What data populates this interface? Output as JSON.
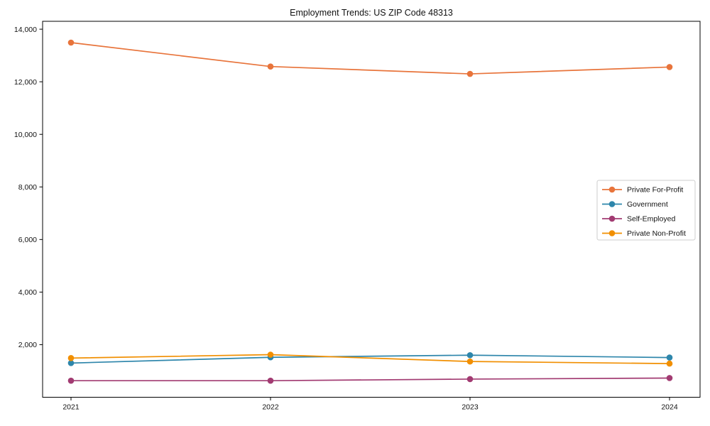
{
  "chart_data": {
    "type": "line",
    "title": "Employment Trends: US ZIP Code 48313",
    "xlabel": "",
    "ylabel": "",
    "x": [
      "2021",
      "2022",
      "2023",
      "2024"
    ],
    "series": [
      {
        "name": "Private For-Profit",
        "color": "#E8743B",
        "values": [
          13490,
          12580,
          12300,
          12560
        ]
      },
      {
        "name": "Government",
        "color": "#2E86AB",
        "values": [
          1300,
          1520,
          1600,
          1510
        ]
      },
      {
        "name": "Self-Employed",
        "color": "#A23B72",
        "values": [
          630,
          630,
          690,
          730
        ]
      },
      {
        "name": "Private Non-Profit",
        "color": "#F18F01",
        "values": [
          1490,
          1620,
          1360,
          1280
        ]
      }
    ],
    "ylim": [
      0,
      14300
    ],
    "yticks": [
      2000,
      4000,
      6000,
      8000,
      10000,
      12000,
      14000
    ],
    "ytick_labels": [
      "2,000",
      "4,000",
      "6,000",
      "8,000",
      "10,000",
      "12,000",
      "14,000"
    ],
    "legend_position": "center right",
    "grid": false,
    "marker": "circle",
    "axis_color": "#000000",
    "plot_background": "#ffffff",
    "legend_border_color": "#cccccc"
  }
}
